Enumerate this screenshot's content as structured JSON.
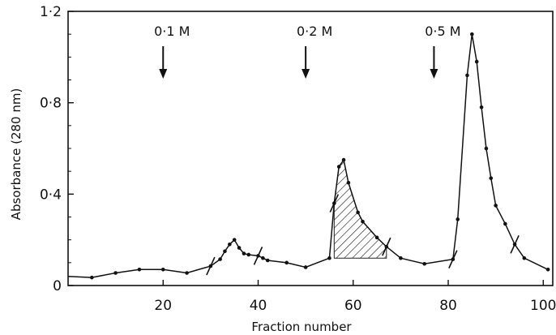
{
  "chart_data": {
    "type": "line",
    "xlabel": "Fraction number",
    "ylabel": "Absorbance (280 nm)",
    "xlim": [
      0,
      102
    ],
    "ylim": [
      0,
      1.2
    ],
    "x_ticks": [
      20,
      40,
      60,
      80,
      100
    ],
    "x_tick_labels": [
      "20",
      "40",
      "60",
      "80",
      "100"
    ],
    "y_ticks": [
      0,
      0.4,
      0.8,
      1.2
    ],
    "y_tick_labels": [
      "0",
      "0·4",
      "0·8",
      "1·2"
    ],
    "grid": false,
    "series": [
      {
        "x": [
          0,
          5,
          10,
          15,
          20,
          25,
          30,
          32,
          33,
          34,
          35,
          36,
          37,
          38,
          40,
          41,
          42,
          46,
          50,
          55,
          56,
          57,
          58,
          59,
          61,
          62,
          65,
          67,
          70,
          75,
          81,
          82,
          84,
          85,
          86,
          87,
          88,
          89,
          90,
          92,
          94,
          96,
          101
        ],
        "y": [
          0.04,
          0.035,
          0.055,
          0.07,
          0.07,
          0.055,
          0.085,
          0.115,
          0.15,
          0.18,
          0.2,
          0.165,
          0.14,
          0.135,
          0.13,
          0.12,
          0.11,
          0.1,
          0.08,
          0.12,
          0.36,
          0.52,
          0.55,
          0.45,
          0.32,
          0.28,
          0.21,
          0.17,
          0.12,
          0.095,
          0.115,
          0.29,
          0.92,
          1.1,
          0.98,
          0.78,
          0.6,
          0.47,
          0.35,
          0.27,
          0.18,
          0.12,
          0.07
        ]
      }
    ],
    "shaded_region": {
      "x_start": 56,
      "x_end": 67,
      "baseline_start": 0.12,
      "baseline_end": 0.12
    },
    "pool_marks_x": [
      30,
      40,
      56,
      67,
      81,
      94
    ],
    "annotations": [
      {
        "text": "0·1 M",
        "x": 20
      },
      {
        "text": "0·2 M",
        "x": 50
      },
      {
        "text": "0·5 M",
        "x": 77
      }
    ]
  }
}
